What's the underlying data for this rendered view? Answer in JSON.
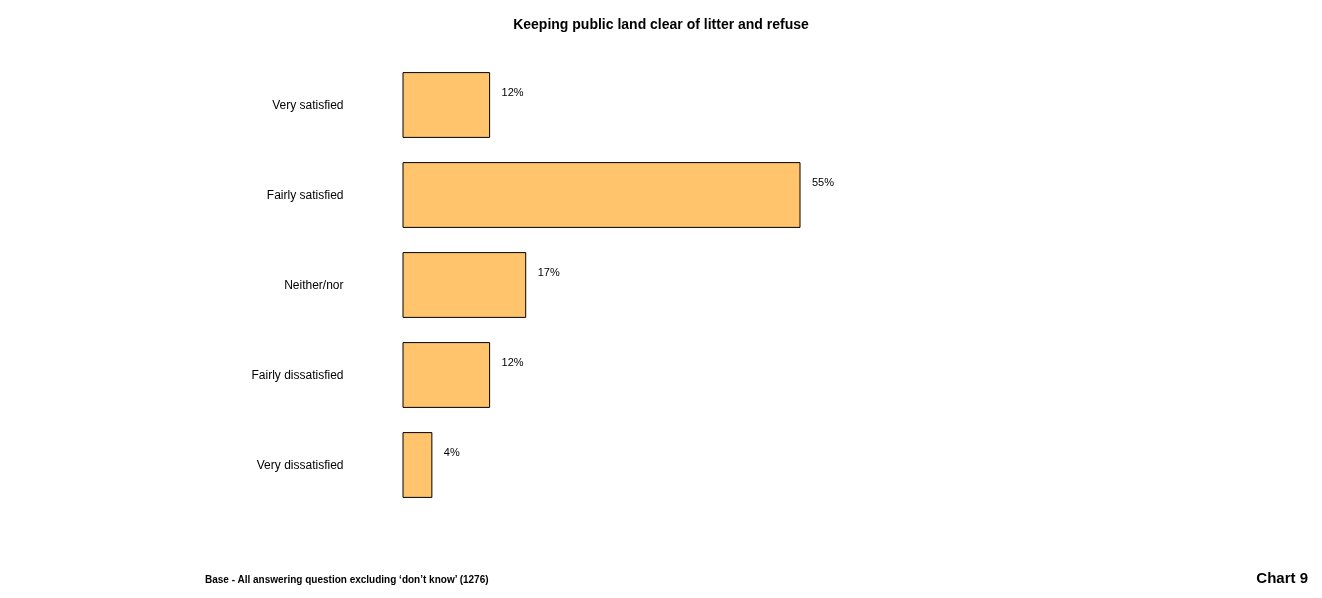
{
  "chart_data": {
    "type": "bar",
    "orientation": "horizontal",
    "title": "Keeping public land clear of litter and refuse",
    "categories": [
      "Very satisfied",
      "Fairly satisfied",
      "Neither/nor",
      "Fairly dissatisfied",
      "Very dissatisfied"
    ],
    "values": [
      12,
      55,
      17,
      12,
      4
    ],
    "color": "#ffc46c",
    "value_labels": [
      "12%",
      "55%",
      "17%",
      "12%",
      "4%"
    ],
    "annotations": [
      "Base - All answering question excluding ‘don’t know’ (1276)",
      "Chart 9"
    ],
    "grid": false
  }
}
